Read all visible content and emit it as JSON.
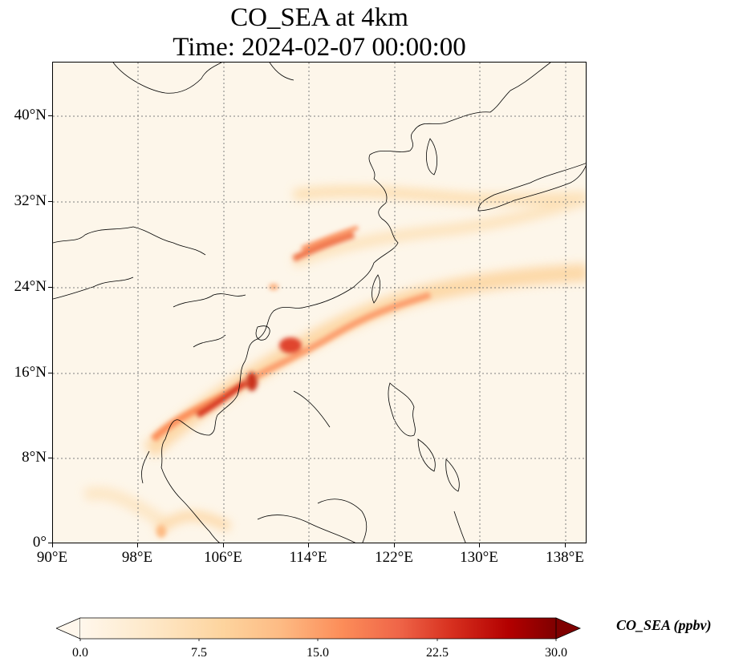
{
  "title_line1": "CO_SEA at 4km",
  "title_line2": "Time: 2024-02-07 00:00:00",
  "y_ticks": [
    "40°N",
    "32°N",
    "24°N",
    "16°N",
    "8°N",
    "0°"
  ],
  "x_ticks": [
    "90°E",
    "98°E",
    "106°E",
    "114°E",
    "122°E",
    "130°E",
    "138°E"
  ],
  "extent": {
    "lon": [
      90,
      140
    ],
    "lat": [
      0,
      45
    ]
  },
  "tick_values": {
    "lon": [
      90,
      98,
      106,
      114,
      122,
      130,
      138
    ],
    "lat": [
      40,
      32,
      24,
      16,
      8,
      0
    ]
  },
  "colorbar": {
    "label": "CO_SEA (ppbv)",
    "ticks": [
      "0.0",
      "7.5",
      "15.0",
      "22.5",
      "30.0"
    ],
    "range": [
      0,
      30
    ],
    "extend": "both",
    "colormap": "OrRd",
    "colors": [
      "#fff7ec",
      "#fee8c8",
      "#fdd49e",
      "#fdbb84",
      "#fc8d59",
      "#ef6548",
      "#d7301f",
      "#b30000",
      "#7f0000"
    ]
  },
  "colors": {
    "background": "#fdf6ea",
    "coast": "#000000",
    "grid": "#808080"
  }
}
